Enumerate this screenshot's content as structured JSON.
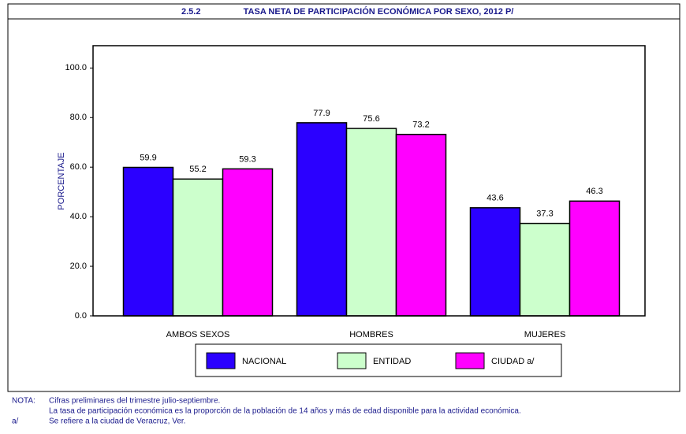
{
  "chart_data": {
    "type": "bar",
    "number": "2.5.2",
    "title": "TASA NETA DE PARTICIPACIÓN ECONÓMICA POR SEXO, 2012 P/",
    "y_label": "PORCENTAJE",
    "categories": [
      "AMBOS SEXOS",
      "HOMBRES",
      "MUJERES"
    ],
    "series": [
      {
        "name": "NACIONAL",
        "color": "#2b00ff",
        "values": [
          59.9,
          77.9,
          43.6
        ]
      },
      {
        "name": "ENTIDAD",
        "color": "#ccffcc",
        "values": [
          55.2,
          75.6,
          37.3
        ]
      },
      {
        "name": "CIUDAD a/",
        "color": "#ff00ff",
        "values": [
          59.3,
          73.2,
          46.3
        ]
      }
    ],
    "ylim": [
      0,
      109
    ],
    "yticks": [
      {
        "value": 0,
        "label": "0.0"
      },
      {
        "value": 20,
        "label": "20.0"
      },
      {
        "value": 40,
        "label": "40.0"
      },
      {
        "value": 60,
        "label": "60.0"
      },
      {
        "value": 80,
        "label": "80.0"
      },
      {
        "value": 100,
        "label": "100.0"
      }
    ],
    "notes": [
      {
        "mark": "NOTA:",
        "lines": [
          "Cifras preliminares del trimestre julio-septiembre.",
          "La tasa de participación económica es la proporción de la población de 14 años y más de edad disponible para la actividad económica."
        ]
      },
      {
        "mark": "a/",
        "lines": [
          "Se refiere a la ciudad de Veracruz, Ver."
        ]
      }
    ]
  }
}
